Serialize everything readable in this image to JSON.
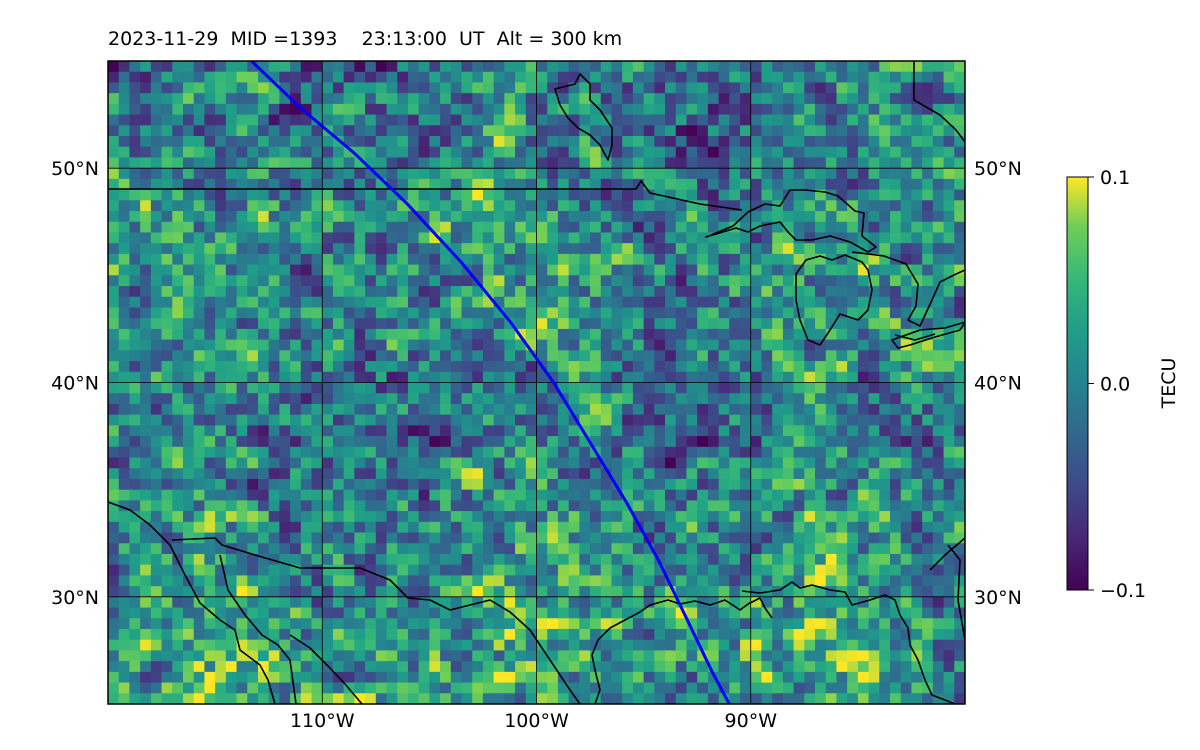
{
  "title": "2023-11-29  MID =1393    23:13:00  UT  Alt = 300 km",
  "map": {
    "lon_range": [
      -120,
      -80
    ],
    "lat_range": [
      25,
      55
    ],
    "colormap": "viridis",
    "grid": true,
    "lat_ticks": [
      {
        "value": 50,
        "label": "50°N"
      },
      {
        "value": 40,
        "label": "40°N"
      },
      {
        "value": 30,
        "label": "30°N"
      }
    ],
    "lon_ticks": [
      {
        "value": -110,
        "label": "110°W"
      },
      {
        "value": -100,
        "label": "100°W"
      },
      {
        "value": -90,
        "label": "90°W"
      }
    ],
    "satellite_track": {
      "color": "#0000ff",
      "points": [
        [
          -113.3,
          55
        ],
        [
          -111,
          52.8
        ],
        [
          -108.5,
          50.7
        ],
        [
          -106,
          48.3
        ],
        [
          -103.5,
          45.6
        ],
        [
          -101.2,
          42.8
        ],
        [
          -99.2,
          40
        ],
        [
          -97.5,
          37.2
        ],
        [
          -95.8,
          34.4
        ],
        [
          -94.3,
          31.7
        ],
        [
          -93,
          29
        ],
        [
          -91.8,
          26.5
        ],
        [
          -91,
          25
        ]
      ]
    }
  },
  "colorbar": {
    "label": "TECU",
    "min": -0.1,
    "max": 0.1,
    "ticks": [
      {
        "value": 0.1,
        "label": "0.1"
      },
      {
        "value": 0.0,
        "label": "0.0"
      },
      {
        "value": -0.1,
        "label": "−0.1"
      }
    ]
  },
  "colors": {
    "coastline": "#000000",
    "gridline": "#000000",
    "track": "#0000ff"
  }
}
